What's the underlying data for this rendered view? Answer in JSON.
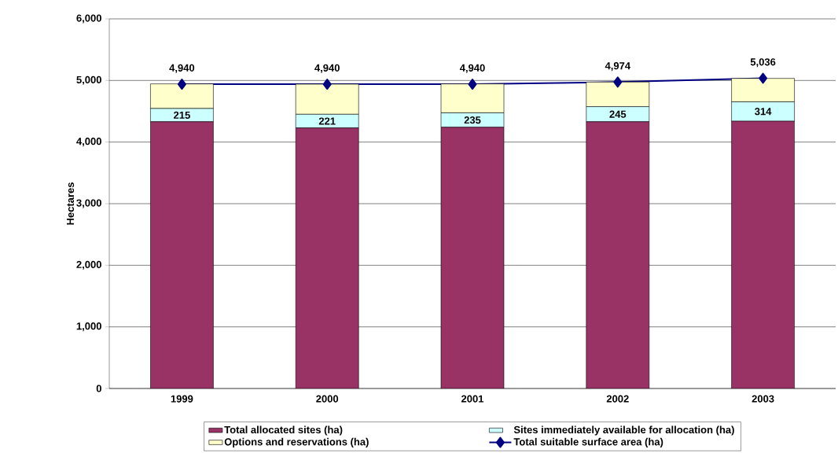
{
  "chart_data": {
    "type": "bar",
    "stacked": true,
    "ylabel": "Hectares",
    "categories": [
      "1999",
      "2000",
      "2001",
      "2002",
      "2003"
    ],
    "series": [
      {
        "name": "Total allocated sites (ha)",
        "color": "#993366",
        "values": [
          4330,
          4230,
          4240,
          4330,
          4340
        ]
      },
      {
        "name": "Sites immediately available for allocation (ha)",
        "color": "#ccffff",
        "values": [
          215,
          221,
          235,
          245,
          314
        ],
        "value_labels": [
          "215",
          "221",
          "235",
          "245",
          "314"
        ]
      },
      {
        "name": "Options and reservations (ha)",
        "color": "#ffffcc",
        "values": [
          400,
          490,
          470,
          400,
          380
        ]
      },
      {
        "name": "Total suitable surface area (ha)",
        "type": "line",
        "color": "#000080",
        "marker": "diamond",
        "values": [
          4940,
          4940,
          4940,
          4974,
          5036
        ],
        "value_labels": [
          "4,940",
          "4,940",
          "4,940",
          "4,974",
          "5,036"
        ]
      }
    ],
    "ylim": [
      0,
      6000
    ],
    "yticks": [
      0,
      {
        "value": 1000,
        "label": "1,000"
      },
      {
        "value": 2000,
        "label": "2,000"
      },
      {
        "value": 3000,
        "label": "3,000"
      },
      {
        "value": 4000,
        "label": "4,000"
      },
      {
        "value": 5000,
        "label": "5,000"
      },
      {
        "value": 6000,
        "label": "6,000"
      }
    ],
    "grid": "y",
    "legend": "bottom"
  }
}
